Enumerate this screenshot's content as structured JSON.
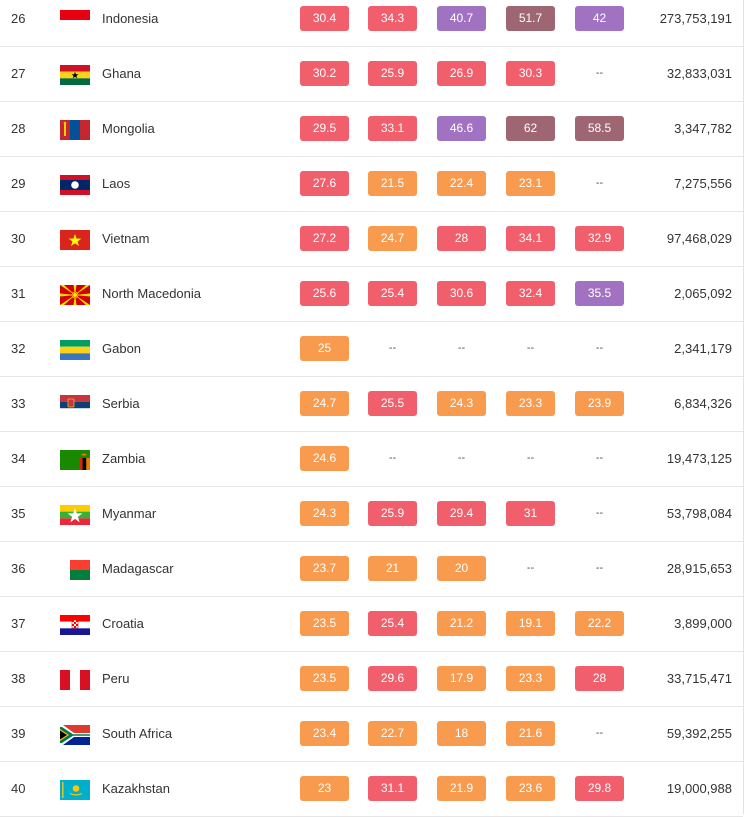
{
  "colors": {
    "orange": "#f89b4f",
    "red": "#f15e6c",
    "purple": "#a172c2",
    "mauve": "#9e6673"
  },
  "rows": [
    {
      "rank": "26",
      "country": "Indonesia",
      "flag": "indonesia-flag-icon",
      "values": [
        "30.4",
        "34.3",
        "40.7",
        "51.7",
        "42"
      ],
      "colors": [
        "red",
        "red",
        "purple",
        "mauve",
        "purple"
      ],
      "population": "273,753,191"
    },
    {
      "rank": "27",
      "country": "Ghana",
      "flag": "ghana-flag-icon",
      "values": [
        "30.2",
        "25.9",
        "26.9",
        "30.3",
        "--"
      ],
      "colors": [
        "red",
        "red",
        "red",
        "red",
        ""
      ],
      "population": "32,833,031"
    },
    {
      "rank": "28",
      "country": "Mongolia",
      "flag": "mongolia-flag-icon",
      "values": [
        "29.5",
        "33.1",
        "46.6",
        "62",
        "58.5"
      ],
      "colors": [
        "red",
        "red",
        "purple",
        "mauve",
        "mauve"
      ],
      "population": "3,347,782"
    },
    {
      "rank": "29",
      "country": "Laos",
      "flag": "laos-flag-icon",
      "values": [
        "27.6",
        "21.5",
        "22.4",
        "23.1",
        "--"
      ],
      "colors": [
        "red",
        "orange",
        "orange",
        "orange",
        ""
      ],
      "population": "7,275,556"
    },
    {
      "rank": "30",
      "country": "Vietnam",
      "flag": "vietnam-flag-icon",
      "values": [
        "27.2",
        "24.7",
        "28",
        "34.1",
        "32.9"
      ],
      "colors": [
        "red",
        "orange",
        "red",
        "red",
        "red"
      ],
      "population": "97,468,029"
    },
    {
      "rank": "31",
      "country": "North Macedonia",
      "flag": "north-macedonia-flag-icon",
      "values": [
        "25.6",
        "25.4",
        "30.6",
        "32.4",
        "35.5"
      ],
      "colors": [
        "red",
        "red",
        "red",
        "red",
        "purple"
      ],
      "population": "2,065,092"
    },
    {
      "rank": "32",
      "country": "Gabon",
      "flag": "gabon-flag-icon",
      "values": [
        "25",
        "--",
        "--",
        "--",
        "--"
      ],
      "colors": [
        "orange",
        "",
        "",
        "",
        ""
      ],
      "population": "2,341,179"
    },
    {
      "rank": "33",
      "country": "Serbia",
      "flag": "serbia-flag-icon",
      "values": [
        "24.7",
        "25.5",
        "24.3",
        "23.3",
        "23.9"
      ],
      "colors": [
        "orange",
        "red",
        "orange",
        "orange",
        "orange"
      ],
      "population": "6,834,326"
    },
    {
      "rank": "34",
      "country": "Zambia",
      "flag": "zambia-flag-icon",
      "values": [
        "24.6",
        "--",
        "--",
        "--",
        "--"
      ],
      "colors": [
        "orange",
        "",
        "",
        "",
        ""
      ],
      "population": "19,473,125"
    },
    {
      "rank": "35",
      "country": "Myanmar",
      "flag": "myanmar-flag-icon",
      "values": [
        "24.3",
        "25.9",
        "29.4",
        "31",
        "--"
      ],
      "colors": [
        "orange",
        "red",
        "red",
        "red",
        ""
      ],
      "population": "53,798,084"
    },
    {
      "rank": "36",
      "country": "Madagascar",
      "flag": "madagascar-flag-icon",
      "values": [
        "23.7",
        "21",
        "20",
        "--",
        "--"
      ],
      "colors": [
        "orange",
        "orange",
        "orange",
        "",
        ""
      ],
      "population": "28,915,653"
    },
    {
      "rank": "37",
      "country": "Croatia",
      "flag": "croatia-flag-icon",
      "values": [
        "23.5",
        "25.4",
        "21.2",
        "19.1",
        "22.2"
      ],
      "colors": [
        "orange",
        "red",
        "orange",
        "orange",
        "orange"
      ],
      "population": "3,899,000"
    },
    {
      "rank": "38",
      "country": "Peru",
      "flag": "peru-flag-icon",
      "values": [
        "23.5",
        "29.6",
        "17.9",
        "23.3",
        "28"
      ],
      "colors": [
        "orange",
        "red",
        "orange",
        "orange",
        "red"
      ],
      "population": "33,715,471"
    },
    {
      "rank": "39",
      "country": "South Africa",
      "flag": "south-africa-flag-icon",
      "values": [
        "23.4",
        "22.7",
        "18",
        "21.6",
        "--"
      ],
      "colors": [
        "orange",
        "orange",
        "orange",
        "orange",
        ""
      ],
      "population": "59,392,255"
    },
    {
      "rank": "40",
      "country": "Kazakhstan",
      "flag": "kazakhstan-flag-icon",
      "values": [
        "23",
        "31.1",
        "21.9",
        "23.6",
        "29.8"
      ],
      "colors": [
        "orange",
        "red",
        "orange",
        "orange",
        "red"
      ],
      "population": "19,000,988"
    }
  ]
}
